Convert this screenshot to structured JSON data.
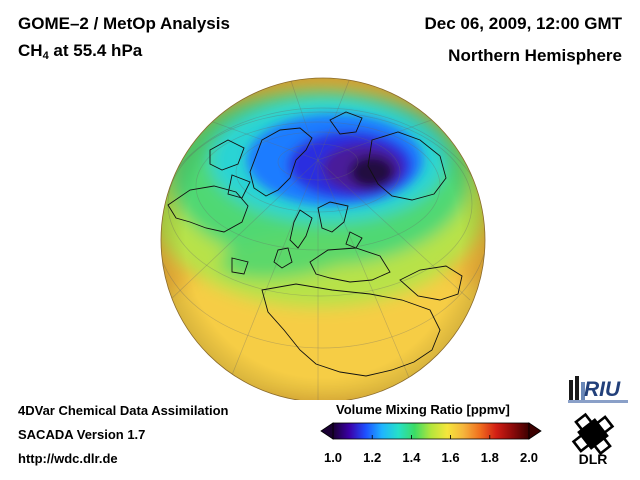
{
  "header": {
    "title": "GOME–2 / MetOp Analysis",
    "species_main": "CH",
    "species_sub": "4",
    "species_rest": " at 55.4 hPa",
    "datetime": "Dec 06, 2009, 12:00 GMT",
    "region": "Northern Hemisphere"
  },
  "footer": {
    "method": "4DVar Chemical Data Assimilation",
    "version": "SACADA Version 1.7",
    "url": "http://wdc.dlr.de"
  },
  "colorbar": {
    "title": "Volume Mixing Ratio [ppmv]",
    "min": 1.0,
    "max": 2.0,
    "ticks": [
      "1.0",
      "1.2",
      "1.4",
      "1.6",
      "1.8",
      "2.0"
    ],
    "colors": [
      "#1a0033",
      "#3b00a8",
      "#1e50ff",
      "#1fb4ff",
      "#25e0c8",
      "#3cdc64",
      "#b4e63c",
      "#f5e63c",
      "#f5b43c",
      "#f06e1e",
      "#d21e14",
      "#8c0a0a",
      "#3c0000"
    ]
  },
  "logos": {
    "riu": "RIU",
    "dlr": "DLR"
  },
  "map_colors": {
    "ocean_base": "#f2b63a",
    "low_lat": "#f6cd45",
    "mid_band": "#b8e24a",
    "green_band": "#4fd873",
    "cyan": "#2bd4d4",
    "blue": "#1f7bff",
    "deep_blue": "#2a2fe0",
    "violet": "#4a1d9a",
    "core": "#22083f",
    "coast": "#111111"
  }
}
